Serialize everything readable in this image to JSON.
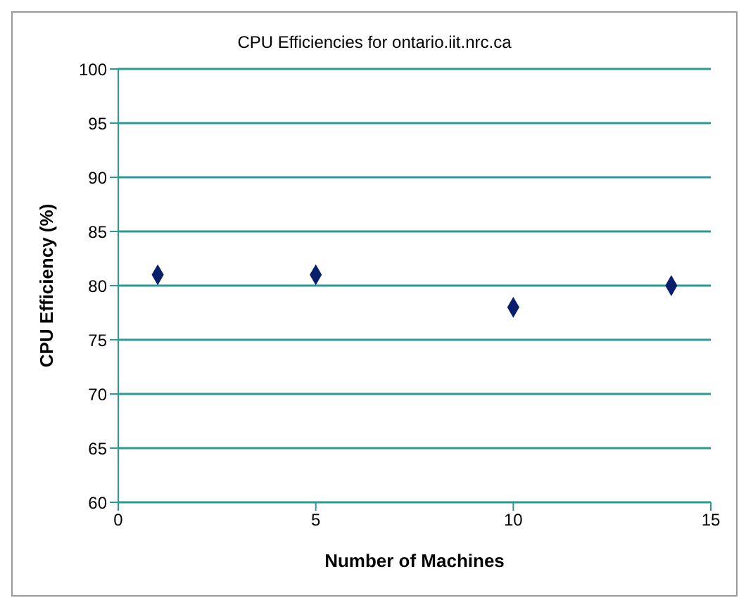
{
  "chart_data": {
    "type": "scatter",
    "title": "CPU Efficiencies for ontario.iit.nrc.ca",
    "xlabel": "Number of Machines",
    "ylabel": "CPU Efficiency (%)",
    "x": [
      1,
      5,
      10,
      14
    ],
    "values": [
      81,
      81,
      78,
      80
    ],
    "color": "#0a1f6b",
    "xlim": [
      0,
      15
    ],
    "xticks": [
      0,
      5,
      10,
      15
    ],
    "ylim": [
      60,
      100
    ],
    "yticks": [
      60,
      65,
      70,
      75,
      80,
      85,
      90,
      95,
      100
    ],
    "grid": "y",
    "marker": "diamond",
    "legend": false
  }
}
